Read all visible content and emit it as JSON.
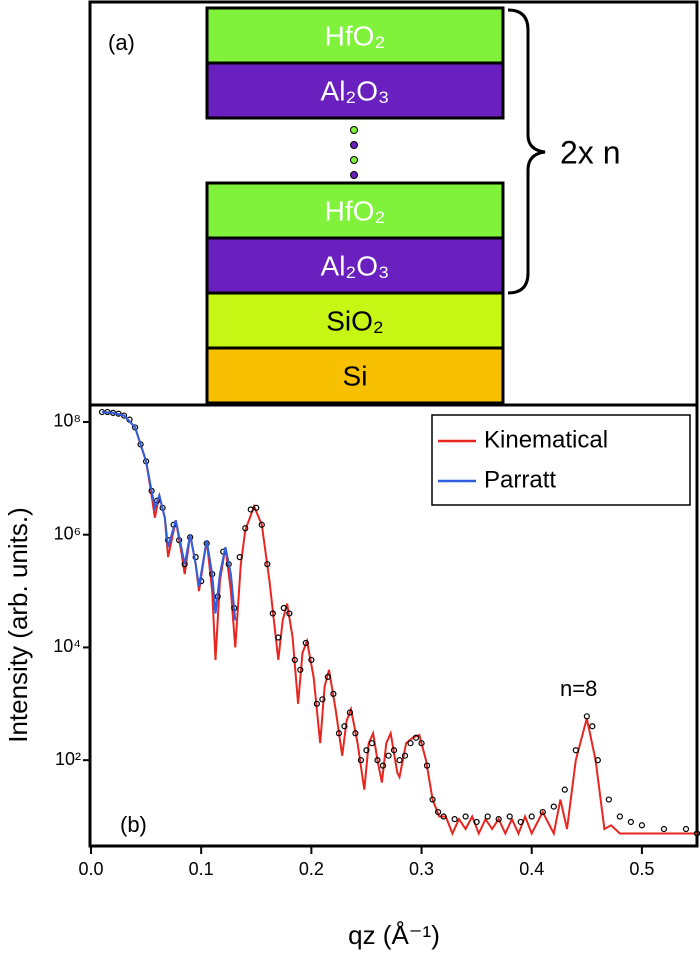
{
  "diagram": {
    "label": "(a)",
    "layers": [
      "HfO₂",
      "Al₂O₃",
      "HfO₂",
      "Al₂O₃",
      "SiO₂",
      "Si"
    ],
    "brace_label": "2x n"
  },
  "chart_data": {
    "type": "line",
    "panel_label": "(b)",
    "annotation": "n=8",
    "xlabel": "qz (Å⁻¹)",
    "ylabel": "Intensity (arb. units.)",
    "xlim": [
      0,
      0.55
    ],
    "ylim": [
      3,
      200000000
    ],
    "log_y": true,
    "legend": "upper right",
    "xticks": [
      {
        "value": 0,
        "label": "0.0"
      },
      0.1,
      0.2,
      0.3,
      0.4,
      0.5
    ],
    "yticks": [
      {
        "value": 100,
        "label": "10²"
      },
      {
        "value": 10000,
        "label": "10⁴"
      },
      {
        "value": 1000000,
        "label": "10⁶"
      },
      {
        "value": 100000000,
        "label": "10⁸"
      }
    ],
    "series": [
      {
        "name": "Kinematical",
        "color": "#e8251f",
        "x": [
          0.01,
          0.02,
          0.03,
          0.04,
          0.045,
          0.05,
          0.055,
          0.058,
          0.062,
          0.067,
          0.07,
          0.077,
          0.082,
          0.085,
          0.09,
          0.095,
          0.098,
          0.105,
          0.11,
          0.113,
          0.117,
          0.122,
          0.127,
          0.131,
          0.136,
          0.14,
          0.148,
          0.155,
          0.162,
          0.17,
          0.174,
          0.178,
          0.183,
          0.188,
          0.192,
          0.196,
          0.202,
          0.208,
          0.212,
          0.216,
          0.222,
          0.228,
          0.232,
          0.236,
          0.242,
          0.248,
          0.252,
          0.256,
          0.26,
          0.264,
          0.268,
          0.272,
          0.278,
          0.28,
          0.286,
          0.292,
          0.298,
          0.304,
          0.31,
          0.316,
          0.322,
          0.328,
          0.334,
          0.34,
          0.346,
          0.352,
          0.358,
          0.364,
          0.37,
          0.376,
          0.382,
          0.388,
          0.394,
          0.4,
          0.41,
          0.42,
          0.426,
          0.432,
          0.44,
          0.45,
          0.458,
          0.466,
          0.472,
          0.48,
          0.5,
          0.55
        ],
        "values": [
          150000000,
          145000000,
          130000000,
          80000000,
          40000000,
          20000000,
          5000000,
          2000000,
          5000000,
          2000000,
          400000,
          1800000,
          500000,
          200000,
          1000000,
          300000,
          100000,
          800000,
          100000,
          6000,
          150000,
          600000,
          100000,
          10000,
          300000,
          1200000,
          3200000,
          1500000,
          150000,
          6000,
          30000,
          60000,
          15000,
          1000,
          8000,
          13000,
          3000,
          200,
          2000,
          4000,
          800,
          120,
          500,
          800,
          200,
          30,
          200,
          300,
          100,
          40,
          200,
          300,
          60,
          50,
          200,
          250,
          280,
          100,
          20,
          10,
          10,
          5,
          9,
          6,
          10,
          5,
          9,
          6,
          9,
          5,
          9,
          5,
          10,
          5,
          12,
          5,
          20,
          6,
          100,
          550,
          100,
          6,
          7,
          5,
          5,
          5
        ]
      },
      {
        "name": "Parratt",
        "color": "#2f5ee0",
        "x": [
          0.01,
          0.02,
          0.03,
          0.04,
          0.045,
          0.05,
          0.055,
          0.058,
          0.062,
          0.067,
          0.07,
          0.077,
          0.082,
          0.085,
          0.09,
          0.095,
          0.098,
          0.105,
          0.11,
          0.113,
          0.117,
          0.122,
          0.127,
          0.131
        ],
        "values": [
          150000000,
          145000000,
          130000000,
          80000000,
          40000000,
          20000000,
          6000000,
          3000000,
          5000000,
          2000000,
          600000,
          1800000,
          600000,
          300000,
          1000000,
          300000,
          120000,
          800000,
          200000,
          40000,
          200000,
          600000,
          200000,
          30000
        ]
      }
    ],
    "points": {
      "color": "#000000",
      "x": [
        0.01,
        0.015,
        0.02,
        0.025,
        0.03,
        0.035,
        0.04,
        0.045,
        0.05,
        0.055,
        0.06,
        0.065,
        0.07,
        0.075,
        0.08,
        0.085,
        0.09,
        0.095,
        0.1,
        0.105,
        0.11,
        0.115,
        0.12,
        0.125,
        0.13,
        0.135,
        0.14,
        0.145,
        0.15,
        0.155,
        0.16,
        0.165,
        0.17,
        0.175,
        0.18,
        0.185,
        0.19,
        0.195,
        0.2,
        0.205,
        0.21,
        0.215,
        0.22,
        0.225,
        0.23,
        0.235,
        0.24,
        0.245,
        0.25,
        0.255,
        0.26,
        0.265,
        0.27,
        0.275,
        0.28,
        0.285,
        0.29,
        0.295,
        0.3,
        0.305,
        0.31,
        0.315,
        0.32,
        0.33,
        0.34,
        0.35,
        0.36,
        0.37,
        0.38,
        0.39,
        0.4,
        0.41,
        0.42,
        0.43,
        0.44,
        0.45,
        0.455,
        0.46,
        0.47,
        0.48,
        0.49,
        0.5,
        0.52,
        0.54,
        0.55
      ],
      "values": [
        150000000,
        150000000,
        145000000,
        140000000,
        130000000,
        110000000,
        80000000,
        40000000,
        20000000,
        6000000,
        4000000,
        3000000,
        800000,
        1500000,
        800000,
        300000,
        900000,
        400000,
        150000,
        700000,
        200000,
        80000,
        500000,
        300000,
        50000,
        400000,
        1300000,
        2800000,
        3000000,
        1500000,
        300000,
        40000,
        15000,
        50000,
        40000,
        6000,
        4000,
        12000,
        6000,
        1000,
        1200,
        3000,
        1500,
        300,
        400,
        700,
        300,
        100,
        150,
        200,
        100,
        80,
        120,
        150,
        100,
        120,
        200,
        250,
        200,
        80,
        20,
        12,
        10,
        9,
        10,
        8,
        10,
        9,
        10,
        8,
        10,
        12,
        15,
        30,
        150,
        600,
        400,
        100,
        20,
        10,
        8,
        7,
        6,
        6,
        5
      ]
    }
  }
}
